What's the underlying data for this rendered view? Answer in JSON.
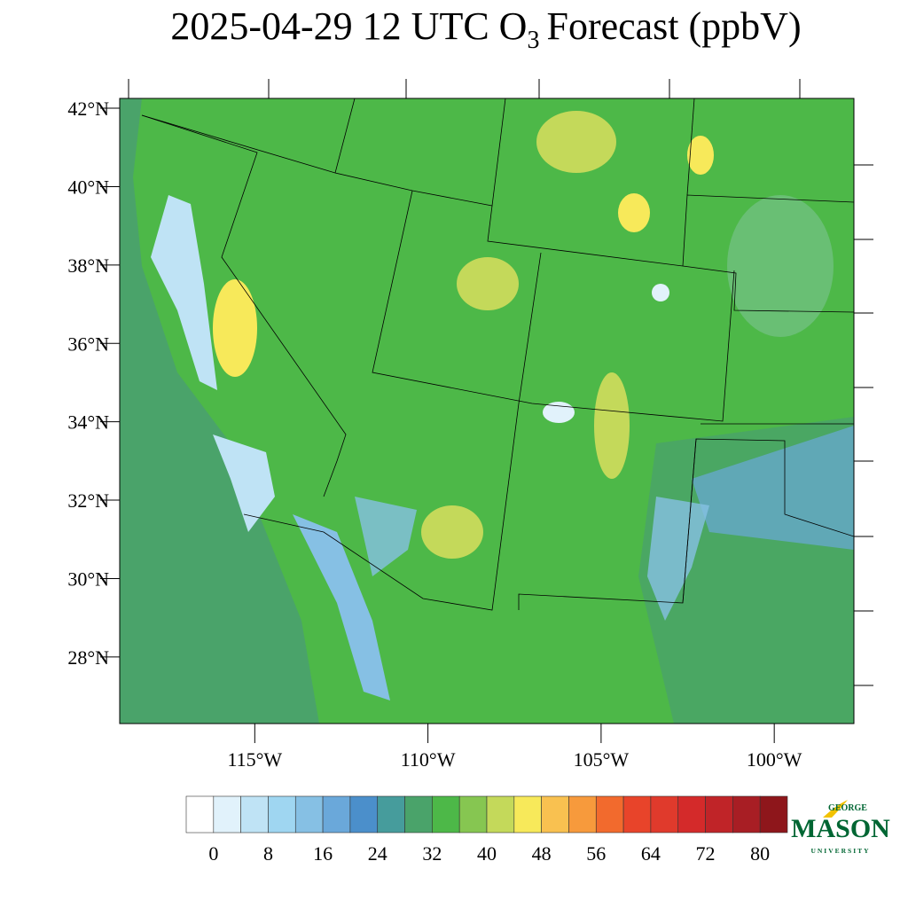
{
  "chart_data": {
    "type": "map",
    "title": "2025-04-29 12 UTC O",
    "title_subscript": "3",
    "title_rest": "Forecast (ppbV)",
    "xlim": [
      -118.9,
      -97.7
    ],
    "ylim": [
      26.3,
      42.25
    ],
    "yticks": [
      {
        "value": 42,
        "label": "42°N"
      },
      {
        "value": 40,
        "label": "40°N"
      },
      {
        "value": 38,
        "label": "38°N"
      },
      {
        "value": 36,
        "label": "36°N"
      },
      {
        "value": 34,
        "label": "34°N"
      },
      {
        "value": 32,
        "label": "32°N"
      },
      {
        "value": 30,
        "label": "30°N"
      },
      {
        "value": 28,
        "label": "28°N"
      }
    ],
    "xticks": [
      {
        "value": -115,
        "label": "115°W"
      },
      {
        "value": -110,
        "label": "110°W"
      },
      {
        "value": -105,
        "label": "105°W"
      },
      {
        "value": -100,
        "label": "100°W"
      }
    ],
    "colorbar": {
      "range": [
        -4,
        84
      ],
      "ticks": [
        0,
        8,
        16,
        24,
        32,
        40,
        48,
        56,
        64,
        72,
        80
      ],
      "colors": [
        "#ffffff",
        "#e1f2fb",
        "#bfe3f5",
        "#9fd6f1",
        "#86c0e4",
        "#6aa8da",
        "#4b8fcb",
        "#469c9c",
        "#4aa36a",
        "#4db848",
        "#86c651",
        "#c4d95a",
        "#f7e95a",
        "#f9c150",
        "#f79a3c",
        "#f26a2d",
        "#e8442a",
        "#e03a2c",
        "#d42a2a",
        "#c02428",
        "#a81e24",
        "#8e161b"
      ]
    }
  },
  "logo": {
    "top": "GEORGE",
    "main": "MASON",
    "bottom": "UNIVERSITY"
  }
}
